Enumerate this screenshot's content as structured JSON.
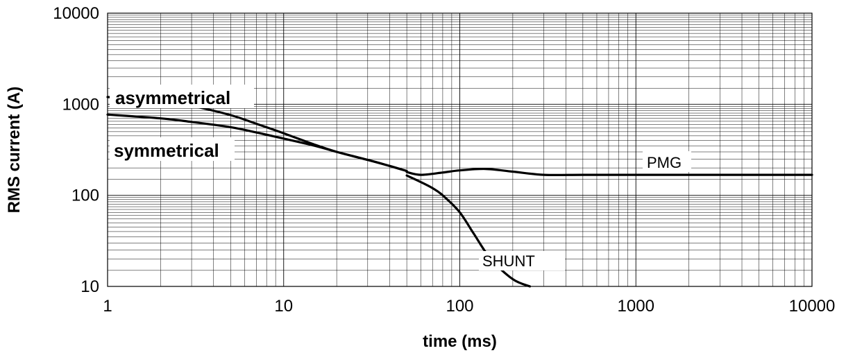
{
  "chart_data": {
    "type": "line",
    "title": "",
    "xlabel": "time (ms)",
    "ylabel": "RMS current (A)",
    "x_scale": "log",
    "y_scale": "log",
    "xlim": [
      1,
      10000
    ],
    "ylim": [
      10,
      10000
    ],
    "grid": true,
    "x_ticks": [
      "1",
      "10",
      "100",
      "1000",
      "10000"
    ],
    "y_ticks": [
      "10",
      "100",
      "1000",
      "10000"
    ],
    "series": [
      {
        "name": "asymmetrical",
        "x": [
          1,
          2,
          3,
          5,
          7,
          10,
          15,
          20,
          30,
          40,
          50
        ],
        "y": [
          1200,
          1080,
          960,
          760,
          610,
          480,
          360,
          300,
          245,
          210,
          185
        ]
      },
      {
        "name": "symmetrical",
        "x": [
          1,
          2,
          3,
          5,
          7,
          10,
          15,
          20,
          30,
          40,
          50
        ],
        "y": [
          770,
          700,
          640,
          560,
          490,
          420,
          350,
          300,
          245,
          210,
          185
        ]
      },
      {
        "name": "PMG",
        "x": [
          50,
          60,
          80,
          100,
          140,
          200,
          300,
          500,
          1000,
          10000
        ],
        "y": [
          180,
          168,
          178,
          188,
          195,
          182,
          168,
          168,
          168,
          168
        ]
      },
      {
        "name": "SHUNT",
        "x": [
          50,
          60,
          70,
          80,
          100,
          120,
          150,
          200,
          250
        ],
        "y": [
          165,
          140,
          120,
          100,
          65,
          38,
          20,
          12,
          10
        ]
      }
    ]
  }
}
